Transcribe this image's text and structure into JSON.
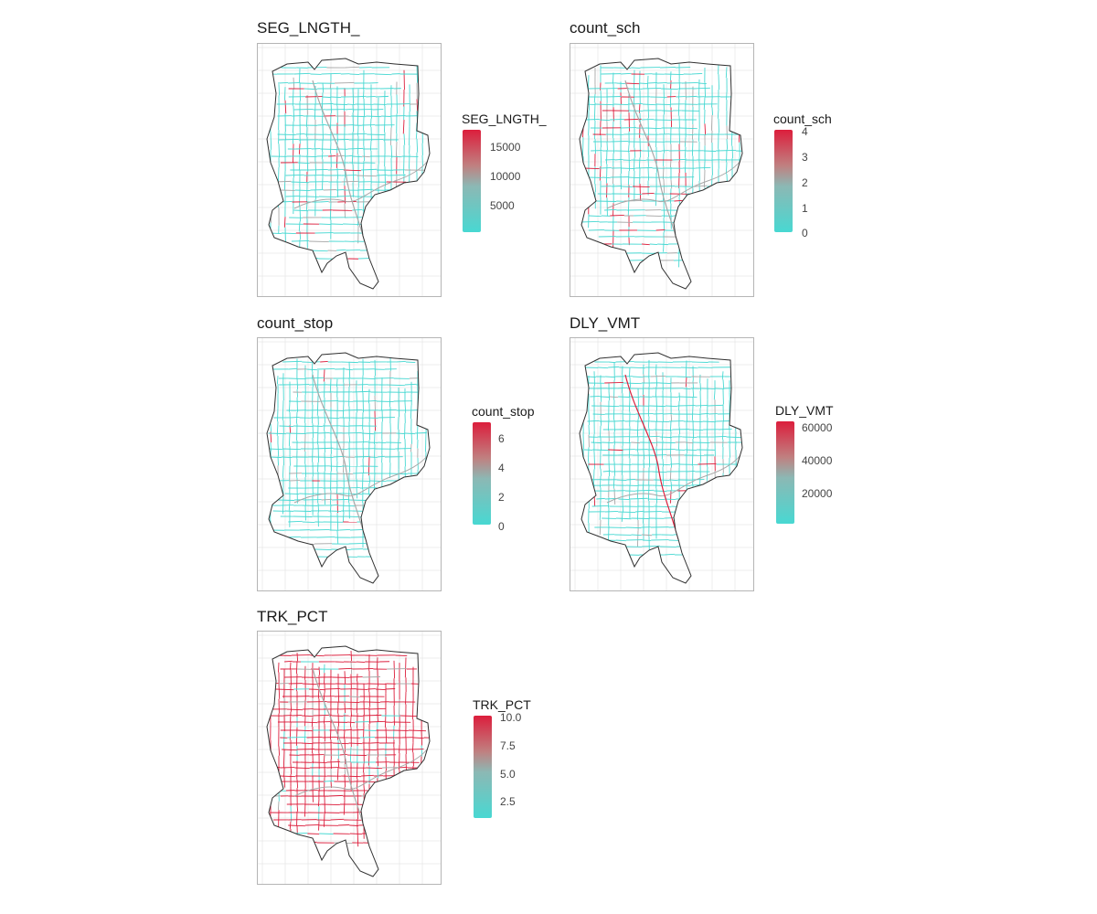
{
  "colors": {
    "low": "#48d8d2",
    "mid": "#c08080",
    "high": "#dc1e3c",
    "neutral": "#a8a8a8",
    "outline": "#303030",
    "grid": "#e8e8e8"
  },
  "panels": [
    {
      "title": "SEG_LNGTH_",
      "legend_title": "SEG_LNGTH_",
      "ticks": [
        "15000",
        "10000",
        "5000"
      ],
      "tick_values": [
        15000,
        10000,
        5000
      ],
      "range": [
        1000,
        18500
      ],
      "high_share": 0.08
    },
    {
      "title": "count_sch",
      "legend_title": "count_sch",
      "ticks": [
        "4",
        "3",
        "2",
        "1",
        "0"
      ],
      "tick_values": [
        4,
        3,
        2,
        1,
        0
      ],
      "range": [
        0,
        4
      ],
      "high_share": 0.12
    },
    {
      "title": "count_stop",
      "legend_title": "count_stop",
      "ticks": [
        "6",
        "4",
        "2",
        "0"
      ],
      "tick_values": [
        6,
        4,
        2,
        0
      ],
      "range": [
        0,
        7
      ],
      "high_share": 0.02
    },
    {
      "title": "DLY_VMT",
      "legend_title": "DLY_VMT",
      "ticks": [
        "60000",
        "40000",
        "20000"
      ],
      "tick_values": [
        60000,
        40000,
        20000
      ],
      "range": [
        3000,
        63000
      ],
      "high_share": 0.03
    },
    {
      "title": "TRK_PCT",
      "legend_title": "TRK_PCT",
      "ticks": [
        "10.0",
        "7.5",
        "5.0",
        "2.5"
      ],
      "tick_values": [
        10.0,
        7.5,
        5.0,
        2.5
      ],
      "range": [
        1.2,
        10.0
      ],
      "high_share": 0.85
    }
  ]
}
